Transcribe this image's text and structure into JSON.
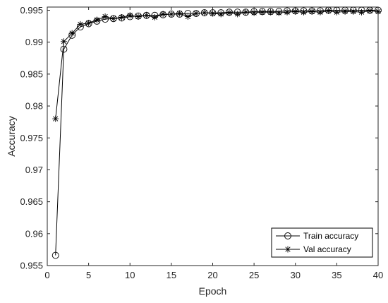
{
  "chart_data": {
    "type": "line",
    "xlabel": "Epoch",
    "ylabel": "Accuracy",
    "xlim": [
      0,
      40
    ],
    "ylim": [
      0.955,
      0.9955
    ],
    "xticks": [
      0,
      5,
      10,
      15,
      20,
      25,
      30,
      35,
      40
    ],
    "yticks": [
      0.955,
      0.96,
      0.965,
      0.97,
      0.975,
      0.98,
      0.985,
      0.99,
      0.995
    ],
    "grid": false,
    "legend_position": "bottom-right",
    "x": [
      1,
      2,
      3,
      4,
      5,
      6,
      7,
      8,
      9,
      10,
      11,
      12,
      13,
      14,
      15,
      16,
      17,
      18,
      19,
      20,
      21,
      22,
      23,
      24,
      25,
      26,
      27,
      28,
      29,
      30,
      31,
      32,
      33,
      34,
      35,
      36,
      37,
      38,
      39,
      40
    ],
    "series": [
      {
        "name": "Train accuracy",
        "marker": "circle",
        "values": [
          0.9566,
          0.9889,
          0.9911,
          0.9924,
          0.9929,
          0.9933,
          0.9936,
          0.9937,
          0.9938,
          0.994,
          0.9941,
          0.9942,
          0.9942,
          0.9943,
          0.9944,
          0.9944,
          0.9945,
          0.9945,
          0.9946,
          0.9946,
          0.9946,
          0.9947,
          0.9947,
          0.9947,
          0.9948,
          0.9948,
          0.9948,
          0.9948,
          0.9949,
          0.9949,
          0.9949,
          0.9949,
          0.9949,
          0.995,
          0.995,
          0.995,
          0.995,
          0.995,
          0.995,
          0.995
        ]
      },
      {
        "name": "Val accuracy",
        "marker": "asterisk",
        "values": [
          0.978,
          0.9901,
          0.9914,
          0.9928,
          0.993,
          0.9935,
          0.994,
          0.9937,
          0.9939,
          0.9942,
          0.994,
          0.9942,
          0.9939,
          0.9944,
          0.9944,
          0.9945,
          0.994,
          0.9945,
          0.9946,
          0.9945,
          0.9944,
          0.9946,
          0.9944,
          0.9947,
          0.9946,
          0.9947,
          0.9947,
          0.9946,
          0.9947,
          0.9948,
          0.9947,
          0.9948,
          0.9947,
          0.9949,
          0.9947,
          0.9948,
          0.9948,
          0.9947,
          0.9949,
          0.9948
        ]
      }
    ]
  }
}
